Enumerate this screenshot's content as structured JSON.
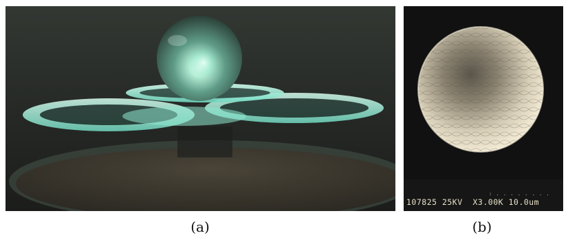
{
  "figure": {
    "panel_a": {
      "caption": "(a)",
      "subject": "glowing-levitated-sphere-above-illuminated-discs"
    },
    "panel_b": {
      "caption": "(b)",
      "subject": "electron-micrograph-of-faceted-sphere",
      "sem_label": "107825 25KV  X3.00K 10.0um"
    }
  }
}
